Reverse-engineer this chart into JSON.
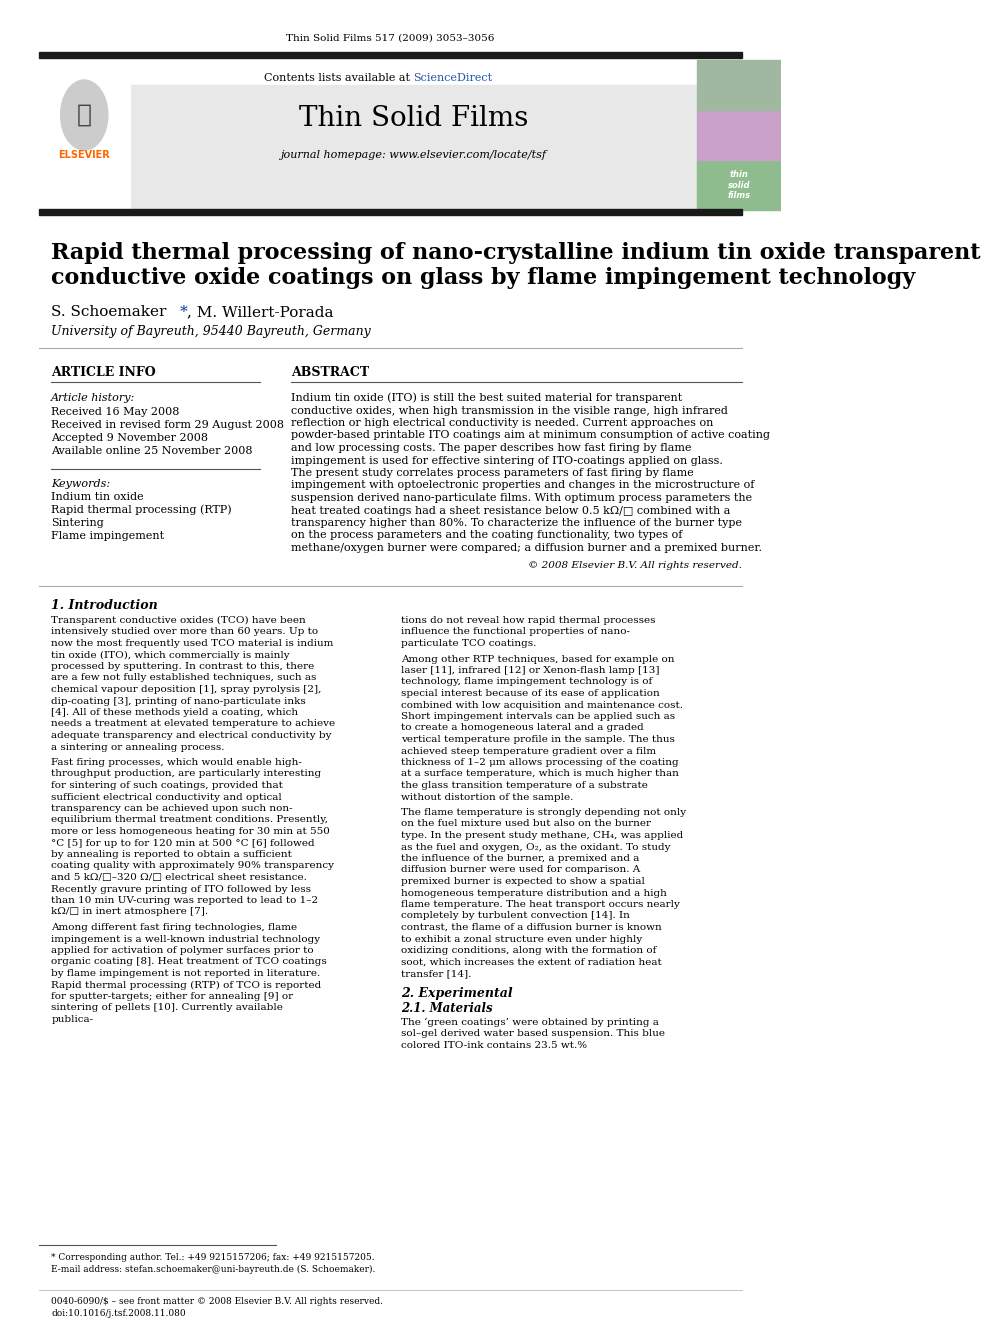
{
  "page_title": "Thin Solid Films 517 (2009) 3053–3056",
  "journal_name": "Thin Solid Films",
  "journal_homepage": "journal homepage: www.elsevier.com/locate/tsf",
  "contents_text": "Contents lists available at ScienceDirect",
  "paper_title_line1": "Rapid thermal processing of nano-crystalline indium tin oxide transparent",
  "paper_title_line2": "conductive oxide coatings on glass by flame impingement technology",
  "authors": "S. Schoemaker *, M. Willert-Porada",
  "affiliation": "University of Bayreuth, 95440 Bayreuth, Germany",
  "article_info_label": "ARTICLE INFO",
  "abstract_label": "ABSTRACT",
  "article_history_label": "Article history:",
  "article_history": [
    "Received 16 May 2008",
    "Received in revised form 29 August 2008",
    "Accepted 9 November 2008",
    "Available online 25 November 2008"
  ],
  "keywords_label": "Keywords:",
  "keywords": [
    "Indium tin oxide",
    "Rapid thermal processing (RTP)",
    "Sintering",
    "Flame impingement"
  ],
  "abstract_text": "Indium tin oxide (ITO) is still the best suited material for transparent conductive oxides, when high transmission in the visible range, high infrared reflection or high electrical conductivity is needed. Current approaches on powder-based printable ITO coatings aim at minimum consumption of active coating and low processing costs. The paper describes how fast firing by flame impingement is used for effective sintering of ITO-coatings applied on glass. The present study correlates process parameters of fast firing by flame impingement with optoelectronic properties and changes in the microstructure of suspension derived nano-particulate films. With optimum process parameters the heat treated coatings had a sheet resistance below 0.5 kΩ/□ combined with a transparency higher than 80%. To characterize the influence of the burner type on the process parameters and the coating functionality, two types of methane/oxygen burner were compared; a diffusion burner and a premixed burner.",
  "copyright_text": "© 2008 Elsevier B.V. All rights reserved.",
  "section1_title": "1. Introduction",
  "section1_col1": "Transparent conductive oxides (TCO) have been intensively studied over more than 60 years. Up to now the most frequently used TCO material is indium tin oxide (ITO), which commercially is mainly processed by sputtering. In contrast to this, there are a few not fully established techniques, such as chemical vapour deposition [1], spray pyrolysis [2], dip-coating [3], printing of nano-particulate inks [4]. All of these methods yield a coating, which needs a treatment at elevated temperature to achieve adequate transparency and electrical conductivity by a sintering or annealing process.\n\nFast firing processes, which would enable high-throughput production, are particularly interesting for sintering of such coatings, provided that sufficient electrical conductivity and optical transparency can be achieved upon such non-equilibrium thermal treatment conditions. Presently, more or less homogeneous heating for 30 min at 550 °C [5] for up to for 120 min at 500 °C [6] followed by annealing is reported to obtain a sufficient coating quality with approximately 90% transparency and 5 kΩ/□–320 Ω/□ electrical sheet resistance. Recently gravure printing of ITO followed by less than 10 min UV-curing was reported to lead to 1–2 kΩ/□ in inert atmosphere [7].\n\nAmong different fast firing technologies, flame impingement is a well-known industrial technology applied for activation of polymer surfaces prior to organic coating [8]. Heat treatment of TCO coatings by flame impingement is not reported in literature. Rapid thermal processing (RTP) of TCO is reported for sputter-targets; either for annealing [9] or sintering of pellets [10]. Currently available publica-",
  "section1_col2": "tions do not reveal how rapid thermal processes influence the functional properties of nano-particulate TCO coatings.\n\nAmong other RTP techniques, based for example on laser [11], infrared [12] or Xenon-flash lamp [13] technology, flame impingement technology is of special interest because of its ease of application combined with low acquisition and maintenance cost. Short impingement intervals can be applied such as to create a homogeneous lateral and a graded vertical temperature profile in the sample. The thus achieved steep temperature gradient over a film thickness of 1–2 μm allows processing of the coating at a surface temperature, which is much higher than the glass transition temperature of a substrate without distortion of the sample.\n\nThe flame temperature is strongly depending not only on the fuel mixture used but also on the burner type. In the present study methane, CH₄, was applied as the fuel and oxygen, O₂, as the oxidant. To study the influence of the burner, a premixed and a diffusion burner were used for comparison. A premixed burner is expected to show a spatial homogeneous temperature distribution and a high flame temperature. The heat transport occurs nearly completely by turbulent convection [14]. In contrast, the flame of a diffusion burner is known to exhibit a zonal structure even under highly oxidizing conditions, along with the formation of soot, which increases the extent of radiation heat transfer [14].",
  "section2_title": "2. Experimental",
  "section21_title": "2.1. Materials",
  "section21_text": "The ‘green coatings’ were obtained by printing a sol–gel derived water based suspension. This blue colored ITO-ink contains 23.5 wt.%",
  "footnote_line1": "* Corresponding author. Tel.: +49 9215157206; fax: +49 9215157205.",
  "footnote_line2": "E-mail address: stefan.schoemaker@uni-bayreuth.de (S. Schoemaker).",
  "footer_line1": "0040-6090/$ – see front matter © 2008 Elsevier B.V. All rights reserved.",
  "footer_line2": "doi:10.1016/j.tsf.2008.11.080",
  "bg_color": "#ffffff",
  "header_bg": "#e8e8e8",
  "link_color": "#2255aa",
  "title_bar_color": "#1a1a1a",
  "section_divider_color": "#888888",
  "italic_color": "#333333"
}
